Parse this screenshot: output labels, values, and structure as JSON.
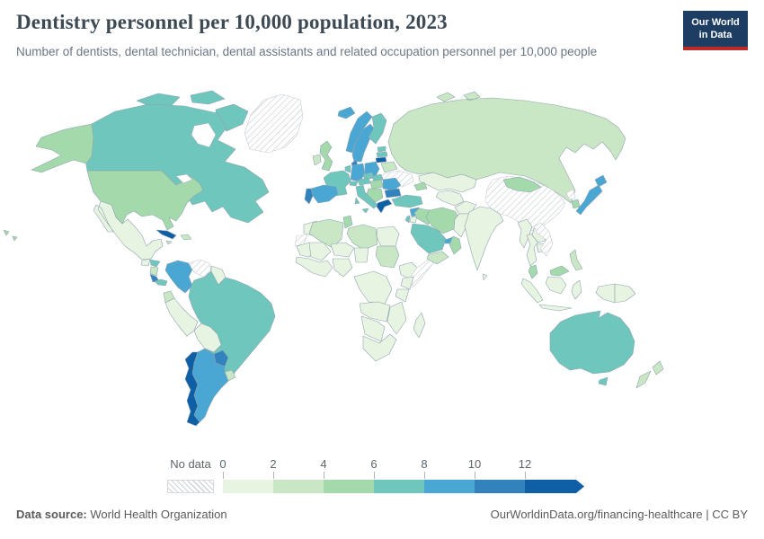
{
  "header": {
    "title": "Dentistry personnel per 10,000 population, 2023",
    "subtitle": "Number of dentists, dental technician, dental assistants and related occupation personnel per 10,000 people"
  },
  "logo": {
    "line1": "Our World",
    "line2": "in Data",
    "bg_color": "#1d3d63",
    "stripe_color": "#bc2a2a"
  },
  "legend": {
    "no_data_label": "No data",
    "ticks": [
      "0",
      "2",
      "4",
      "6",
      "8",
      "10",
      "12"
    ]
  },
  "footer": {
    "source_label": "Data source:",
    "source_value": "World Health Organization",
    "attribution": "OurWorldinData.org/financing-healthcare | CC BY"
  },
  "chart_data": {
    "type": "choropleth_map",
    "title": "Dentistry personnel per 10,000 population, 2023",
    "subtitle": "Number of dentists, dental technician, dental assistants and related occupation personnel per 10,000 people",
    "year": 2023,
    "source": "World Health Organization",
    "unit": "personnel per 10,000 population",
    "colorscale": {
      "open_ended_max": true,
      "border_color": "#8fa3b0",
      "no_data_stripe": "#cdd2d6",
      "buckets": [
        {
          "range": "0-2",
          "color": "#e8f4e2"
        },
        {
          "range": "2-4",
          "color": "#c9e7c4"
        },
        {
          "range": "4-6",
          "color": "#a3d9ab"
        },
        {
          "range": "6-8",
          "color": "#6fc6bd"
        },
        {
          "range": "8-10",
          "color": "#4aa6d2"
        },
        {
          "range": "10-12",
          "color": "#3182bd"
        },
        {
          "range": "12+",
          "color": "#0e5fa6"
        }
      ]
    },
    "countries": {
      "canada": "6-8",
      "united-states": "4-6",
      "mexico": "0-2",
      "guatemala": "0-2",
      "honduras": "6-8",
      "nicaragua": "2-4",
      "costa-rica": "10-12",
      "panama": "6-8",
      "cuba": "12+",
      "dominican-republic": "2-4",
      "jamaica": "2-4",
      "colombia": "8-10",
      "venezuela": "no-data",
      "guyanas": "0-2",
      "brazil": "6-8",
      "ecuador": "2-4",
      "peru": "0-2",
      "bolivia": "0-2",
      "paraguay": "10-12",
      "uruguay": "2-4",
      "argentina": "8-10",
      "chile": "12+",
      "greenland": "no-data",
      "iceland": "8-10",
      "ireland": "2-4",
      "united-kingdom": "4-6",
      "norway": "8-10",
      "sweden": "8-10",
      "finland": "6-8",
      "denmark": "10-12",
      "estonia": "6-8",
      "latvia": "6-8",
      "lithuania": "12+",
      "belarus": "2-4",
      "ukraine": "no-data",
      "poland": "8-10",
      "germany": "8-10",
      "benelux": "6-8",
      "france": "6-8",
      "switzerland": "6-8",
      "austria": "6-8",
      "czechia": "6-8",
      "slovakia": "6-8",
      "hungary": "4-6",
      "romania": "8-10",
      "bulgaria": "10-12",
      "balkans": "4-6",
      "greece": "12+",
      "italy": "6-8",
      "spain": "8-10",
      "portugal": "10-12",
      "russia": "2-4",
      "morocco": "0-2",
      "western-sahara": "no-data",
      "algeria": "2-4",
      "tunisia": "4-6",
      "libya": "2-4",
      "egypt": "0-2",
      "mauritania": "0-2",
      "mali": "0-2",
      "niger": "0-2",
      "chad": "0-2",
      "sudan": "2-4",
      "west-africa": "0-2",
      "nigeria": "0-2",
      "ethiopia": "0-2",
      "somalia": "no-data",
      "kenya": "0-2",
      "central-africa": "0-2",
      "tanzania": "0-2",
      "angola-zambia": "0-2",
      "mozambique-zimbabwe": "0-2",
      "namibia-botswana": "0-2",
      "south-africa": "0-2",
      "madagascar": "0-2",
      "turkey": "6-8",
      "syria": "8-10",
      "israel": "6-8",
      "jordan": "0-2",
      "iraq": "4-6",
      "iran": "4-6",
      "saudi-arabia": "6-8",
      "united-arab-emirates": "8-10",
      "oman": "4-6",
      "yemen": "2-4",
      "kazakhstan": "0-2",
      "central-asia": "0-2",
      "caucasus": "4-6",
      "afghanistan": "0-2",
      "pakistan": "0-2",
      "india": "0-2",
      "sri-lanka": "0-2",
      "china": "no-data",
      "mongolia": "4-6",
      "north-korea": "no-data",
      "south-korea": "4-6",
      "japan": "8-10",
      "myanmar": "0-2",
      "thailand": "0-2",
      "laos": "0-2",
      "cambodia": "0-2",
      "vietnam": "no-data",
      "malaysia": "4-6",
      "indonesia": "0-2",
      "philippines": "2-4",
      "papua-new-guinea": "0-2",
      "australia": "6-8",
      "new-zealand": "2-4"
    }
  }
}
